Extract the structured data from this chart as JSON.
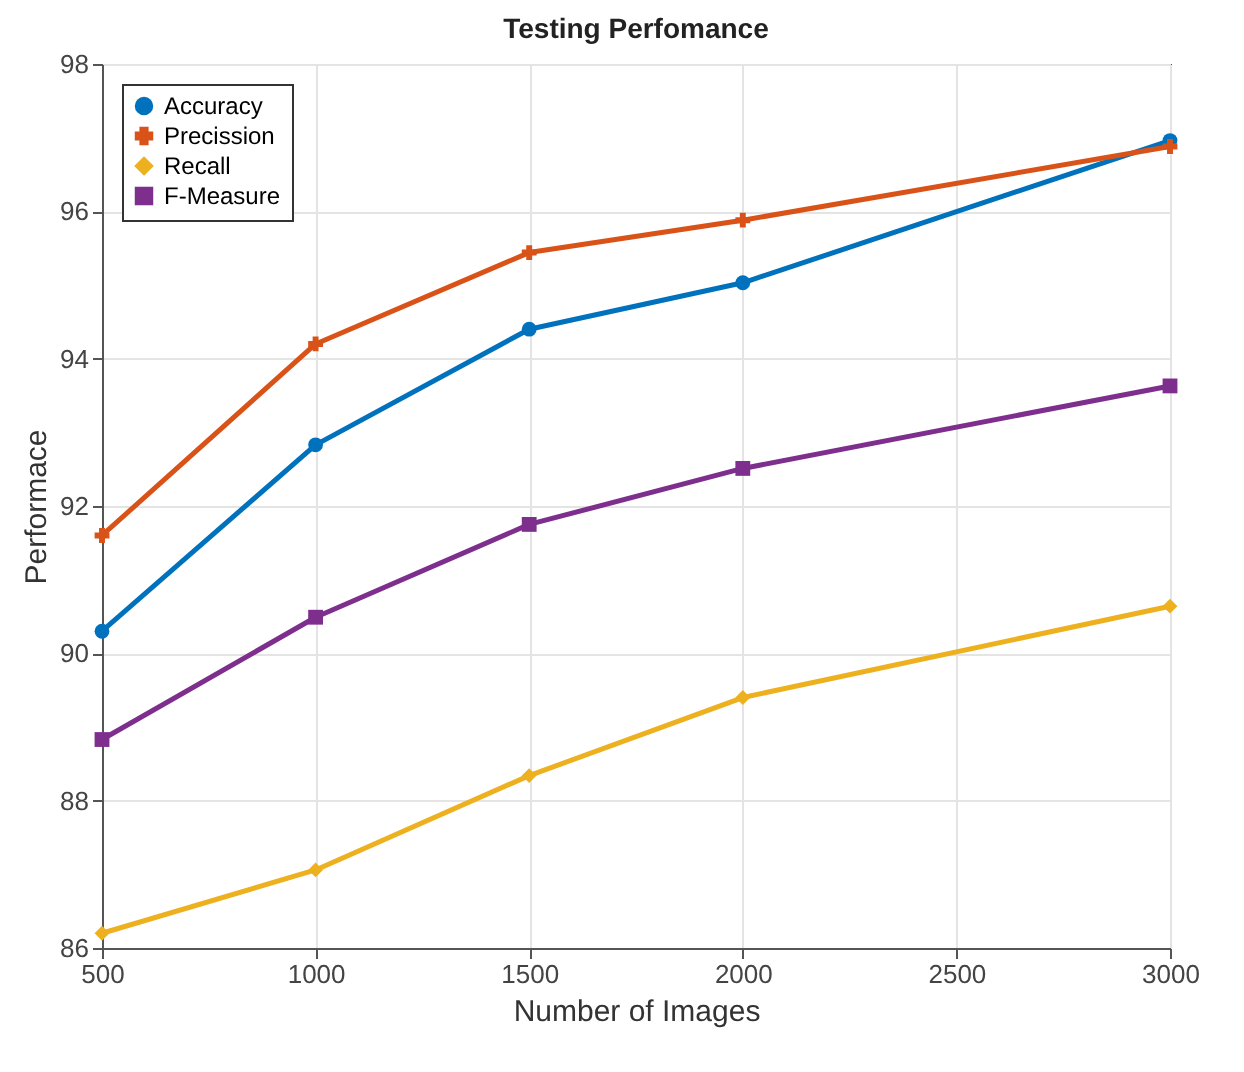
{
  "chart_data": {
    "type": "line",
    "title": "Testing Perfomance",
    "xlabel": "Number of Images",
    "ylabel": "Performace",
    "x": [
      500,
      1000,
      1500,
      2000,
      3000
    ],
    "series": [
      {
        "name": "Accuracy",
        "color": "#0072bd",
        "marker": "circle",
        "values": [
          90.3,
          92.83,
          94.4,
          95.03,
          96.96
        ]
      },
      {
        "name": "Precission",
        "color": "#d95319",
        "marker": "cross",
        "values": [
          91.6,
          94.2,
          95.44,
          95.88,
          96.88
        ]
      },
      {
        "name": "Recall",
        "color": "#edb120",
        "marker": "diamond",
        "values": [
          86.2,
          87.06,
          88.34,
          89.4,
          90.64
        ]
      },
      {
        "name": "F-Measure",
        "color": "#7e2f8e",
        "marker": "square",
        "values": [
          88.83,
          90.49,
          91.75,
          92.51,
          93.63
        ]
      }
    ],
    "xlim": [
      500,
      3000
    ],
    "xticks": [
      500,
      1000,
      1500,
      2000,
      2500,
      3000
    ],
    "ylim": [
      86,
      98
    ],
    "yticks": [
      86,
      88,
      90,
      92,
      94,
      96,
      98
    ],
    "grid": true,
    "legend": "top left",
    "line_style": "solid"
  }
}
